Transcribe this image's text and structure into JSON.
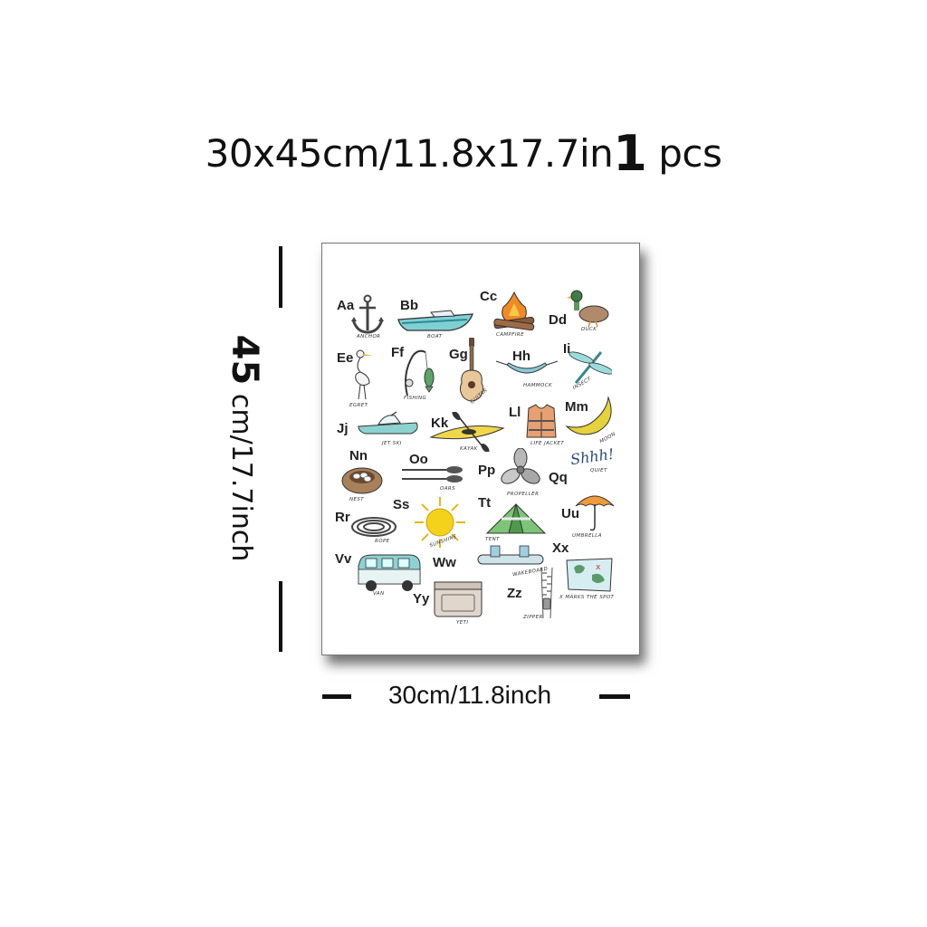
{
  "header": {
    "size_text": "30x45cm/11.8x17.7in",
    "qty_number": "1",
    "qty_unit": "pcs"
  },
  "dimensions": {
    "height_number": "45",
    "height_unit": "cm/17.7inch",
    "width_label": "30cm/11.8inch"
  },
  "poster": {
    "items": [
      {
        "letters": "Aa",
        "word": "ANCHOR",
        "icon": "anchor-icon"
      },
      {
        "letters": "Bb",
        "word": "BOAT",
        "icon": "boat-icon"
      },
      {
        "letters": "Cc",
        "word": "CAMPFIRE",
        "icon": "campfire-icon"
      },
      {
        "letters": "Dd",
        "word": "DUCK",
        "icon": "duck-icon"
      },
      {
        "letters": "Ee",
        "word": "EGRET",
        "icon": "egret-icon"
      },
      {
        "letters": "Ff",
        "word": "FISHING",
        "icon": "fishing-icon"
      },
      {
        "letters": "Gg",
        "word": "GUITAR",
        "icon": "guitar-icon"
      },
      {
        "letters": "Hh",
        "word": "HAMMOCK",
        "icon": "hammock-icon"
      },
      {
        "letters": "Ii",
        "word": "INSECT",
        "icon": "dragonfly-icon"
      },
      {
        "letters": "Jj",
        "word": "JET SKI",
        "icon": "jet-ski-icon"
      },
      {
        "letters": "Kk",
        "word": "KAYAK",
        "icon": "kayak-icon"
      },
      {
        "letters": "Ll",
        "word": "LIFE JACKET",
        "icon": "life-jacket-icon"
      },
      {
        "letters": "Mm",
        "word": "MOON",
        "icon": "moon-icon"
      },
      {
        "letters": "Nn",
        "word": "NEST",
        "icon": "nest-icon"
      },
      {
        "letters": "Oo",
        "word": "OARS",
        "icon": "oars-icon"
      },
      {
        "letters": "Pp",
        "word": "PROPELLER",
        "icon": "propeller-icon"
      },
      {
        "letters": "Qq",
        "word": "QUIET",
        "icon": "shhh-icon",
        "extra": "Shhh!"
      },
      {
        "letters": "Rr",
        "word": "ROPE",
        "icon": "rope-icon"
      },
      {
        "letters": "Ss",
        "word": "SUNSHINE",
        "icon": "sun-icon"
      },
      {
        "letters": "Tt",
        "word": "TENT",
        "icon": "tent-icon"
      },
      {
        "letters": "Uu",
        "word": "UMBRELLA",
        "icon": "umbrella-icon"
      },
      {
        "letters": "Vv",
        "word": "VAN",
        "icon": "van-icon"
      },
      {
        "letters": "Ww",
        "word": "WAKEBOARD",
        "icon": "wakeboard-icon"
      },
      {
        "letters": "Xx",
        "word": "X MARKS THE SPOT",
        "icon": "map-icon"
      },
      {
        "letters": "Yy",
        "word": "YETI",
        "icon": "cooler-icon"
      },
      {
        "letters": "Zz",
        "word": "ZIPPER",
        "icon": "zipper-icon"
      }
    ]
  },
  "colors": {
    "text": "#111111",
    "sun": "#f4d21c",
    "moon": "#e6d23a",
    "water_teal": "#6fc3c7",
    "fire_orange": "#f08a24",
    "tent_green": "#7cc576"
  }
}
